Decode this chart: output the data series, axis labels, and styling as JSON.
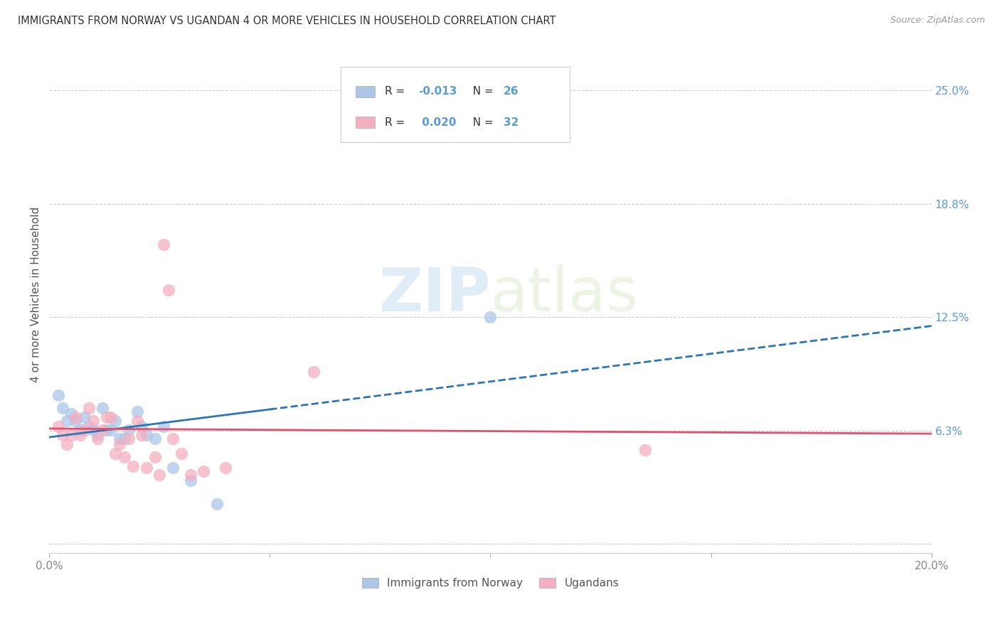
{
  "title": "IMMIGRANTS FROM NORWAY VS UGANDAN 4 OR MORE VEHICLES IN HOUSEHOLD CORRELATION CHART",
  "source": "Source: ZipAtlas.com",
  "ylabel": "4 or more Vehicles in Household",
  "xlim": [
    0.0,
    0.2
  ],
  "ylim": [
    -0.005,
    0.28
  ],
  "xticks": [
    0.0,
    0.05,
    0.1,
    0.15,
    0.2
  ],
  "xticklabels": [
    "0.0%",
    "",
    "",
    "",
    "20.0%"
  ],
  "ytick_positions": [
    0.0,
    0.0625,
    0.125,
    0.1875,
    0.25
  ],
  "ytick_labels_right": [
    "",
    "6.3%",
    "12.5%",
    "18.8%",
    "25.0%"
  ],
  "right_axis_color": "#5b9bd5",
  "background_color": "#ffffff",
  "norway_color": "#adc6e8",
  "ugandan_color": "#f4afc0",
  "norway_edge_color": "#adc6e8",
  "ugandan_edge_color": "#f4afc0",
  "norway_line_color": "#2e75b6",
  "ugandan_line_color": "#e05070",
  "legend_r_norway": "-0.013",
  "legend_n_norway": "26",
  "legend_r_ugandan": "0.020",
  "legend_n_ugandan": "32",
  "legend_label_norway": "Immigrants from Norway",
  "legend_label_ugandan": "Ugandans",
  "norway_x": [
    0.002,
    0.003,
    0.004,
    0.005,
    0.006,
    0.007,
    0.008,
    0.009,
    0.01,
    0.011,
    0.012,
    0.013,
    0.014,
    0.015,
    0.016,
    0.017,
    0.018,
    0.02,
    0.021,
    0.022,
    0.024,
    0.026,
    0.028,
    0.032,
    0.038,
    0.1
  ],
  "norway_y": [
    0.082,
    0.075,
    0.068,
    0.072,
    0.068,
    0.063,
    0.07,
    0.065,
    0.063,
    0.06,
    0.075,
    0.063,
    0.063,
    0.068,
    0.058,
    0.058,
    0.063,
    0.073,
    0.065,
    0.06,
    0.058,
    0.065,
    0.042,
    0.035,
    0.022,
    0.125
  ],
  "ugandan_x": [
    0.002,
    0.003,
    0.004,
    0.005,
    0.006,
    0.007,
    0.008,
    0.009,
    0.01,
    0.011,
    0.012,
    0.013,
    0.014,
    0.015,
    0.016,
    0.017,
    0.018,
    0.019,
    0.02,
    0.021,
    0.022,
    0.024,
    0.025,
    0.026,
    0.027,
    0.028,
    0.03,
    0.032,
    0.035,
    0.04,
    0.06,
    0.135
  ],
  "ugandan_y": [
    0.065,
    0.06,
    0.055,
    0.06,
    0.07,
    0.06,
    0.063,
    0.075,
    0.068,
    0.058,
    0.063,
    0.07,
    0.07,
    0.05,
    0.055,
    0.048,
    0.058,
    0.043,
    0.068,
    0.06,
    0.042,
    0.048,
    0.038,
    0.165,
    0.14,
    0.058,
    0.05,
    0.038,
    0.04,
    0.042,
    0.095,
    0.052
  ],
  "watermark_zip": "ZIP",
  "watermark_atlas": "atlas",
  "marker_size": 140,
  "grid_color": "#cccccc",
  "grid_linestyle": "--"
}
